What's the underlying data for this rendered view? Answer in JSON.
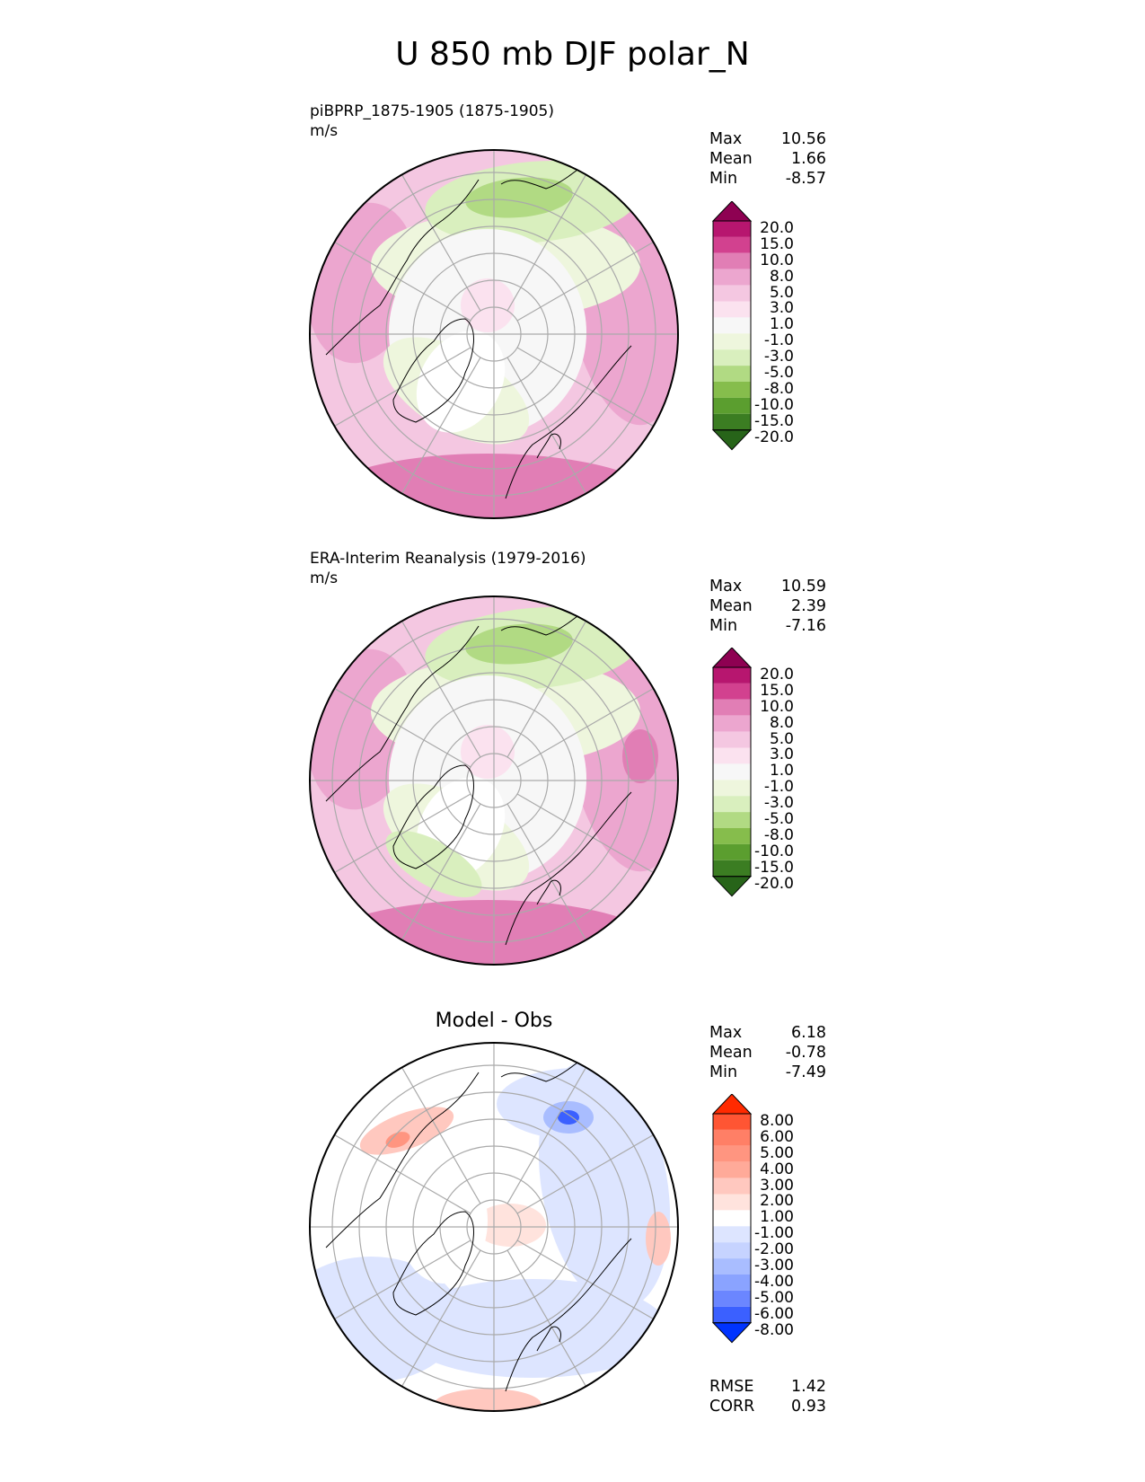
{
  "title": "U 850 mb DJF polar_N",
  "panels": [
    {
      "id": "test",
      "title": "piBPRP_1875-1905 (1875-1905)",
      "units": "m/s",
      "stats": [
        {
          "label": "Max",
          "value": "10.56"
        },
        {
          "label": "Mean",
          "value": "1.66"
        },
        {
          "label": "Min",
          "value": "-8.57"
        }
      ],
      "colorbar": {
        "labels": [
          "20.0",
          "15.0",
          "10.0",
          "8.0",
          "5.0",
          "3.0",
          "1.0",
          "-1.0",
          "-3.0",
          "-5.0",
          "-8.0",
          "-10.0",
          "-15.0",
          "-20.0"
        ],
        "colors": [
          "#8e0152",
          "#b7166f",
          "#d2418f",
          "#e17eb5",
          "#eca6cf",
          "#f4c7e1",
          "#fbe2ef",
          "#f7f7f7",
          "#eef6dd",
          "#d9efbe",
          "#b1da83",
          "#86bd4c",
          "#5b9e2f",
          "#3b7d22",
          "#276419"
        ],
        "over_color": "#8e0152",
        "under_color": "#276419"
      }
    },
    {
      "id": "reference",
      "title": "ERA-Interim Reanalysis (1979-2016)",
      "units": "m/s",
      "stats": [
        {
          "label": "Max",
          "value": "10.59"
        },
        {
          "label": "Mean",
          "value": "2.39"
        },
        {
          "label": "Min",
          "value": "-7.16"
        }
      ],
      "colorbar": {
        "labels": [
          "20.0",
          "15.0",
          "10.0",
          "8.0",
          "5.0",
          "3.0",
          "1.0",
          "-1.0",
          "-3.0",
          "-5.0",
          "-8.0",
          "-10.0",
          "-15.0",
          "-20.0"
        ],
        "colors": [
          "#8e0152",
          "#b7166f",
          "#d2418f",
          "#e17eb5",
          "#eca6cf",
          "#f4c7e1",
          "#fbe2ef",
          "#f7f7f7",
          "#eef6dd",
          "#d9efbe",
          "#b1da83",
          "#86bd4c",
          "#5b9e2f",
          "#3b7d22",
          "#276419"
        ],
        "over_color": "#8e0152",
        "under_color": "#276419"
      }
    },
    {
      "id": "difference",
      "title": "Model - Obs",
      "stats": [
        {
          "label": "Max",
          "value": "6.18"
        },
        {
          "label": "Mean",
          "value": "-0.78"
        },
        {
          "label": "Min",
          "value": "-7.49"
        }
      ],
      "metrics": [
        {
          "label": "RMSE",
          "value": "1.42"
        },
        {
          "label": "CORR",
          "value": "0.93"
        }
      ],
      "colorbar": {
        "labels": [
          "8.00",
          "6.00",
          "5.00",
          "4.00",
          "3.00",
          "2.00",
          "1.00",
          "-1.00",
          "-2.00",
          "-3.00",
          "-4.00",
          "-5.00",
          "-6.00",
          "-8.00"
        ],
        "colors": [
          "#ff2a00",
          "#ff5533",
          "#ff7f66",
          "#ff9580",
          "#ffaa99",
          "#ffc8bf",
          "#ffe3dd",
          "#ffffff",
          "#dde5ff",
          "#c6d3ff",
          "#a9bdff",
          "#8aa3ff",
          "#6b86ff",
          "#3b60ff",
          "#0033ff"
        ],
        "over_color": "#ff2a00",
        "under_color": "#0033ff"
      }
    }
  ]
}
